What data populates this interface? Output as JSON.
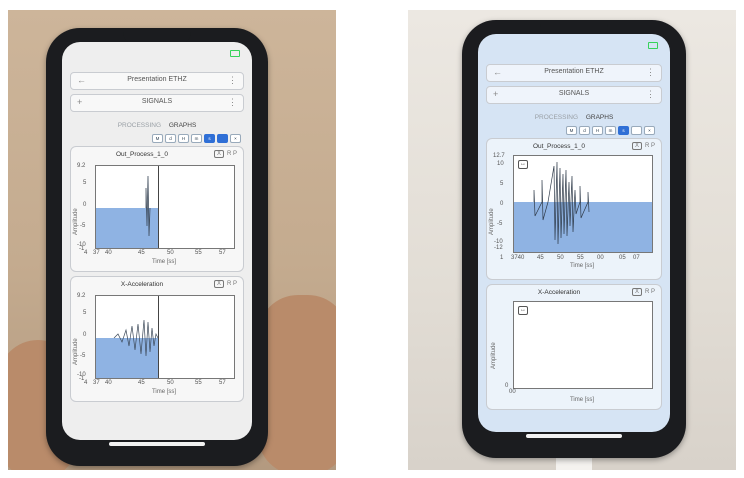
{
  "phones": [
    {
      "app_bar_title": "Presentation ETHZ",
      "signals_label": "SIGNALS",
      "tabs": {
        "processing": "PROCESSING",
        "graphs": "GRAPHS"
      },
      "range_buttons": [
        "M",
        "d",
        "H",
        "m",
        "s"
      ],
      "active_range": "s",
      "charts": [
        {
          "title": "Out_Process_1_0",
          "close": "X",
          "r": "R",
          "p": "P",
          "xlabel": "Time [ss]",
          "ylabel": "Amplitude",
          "yticks": [
            "9.2",
            "5",
            "0",
            "-5",
            "-10"
          ],
          "ymin_label": "-1",
          "xticks": [
            "4",
            "37",
            "40",
            "45",
            "50",
            "55",
            "57"
          ],
          "ylim": [
            -10,
            9.2
          ],
          "cursor_x": 48
        },
        {
          "title": "X-Acceleration",
          "close": "X",
          "r": "R",
          "p": "P",
          "xlabel": "Time [ss]",
          "ylabel": "Amplitude",
          "yticks": [
            "9.2",
            "5",
            "0",
            "-5",
            "-10"
          ],
          "ymin_label": "-1",
          "xticks": [
            "4",
            "37",
            "40",
            "45",
            "50",
            "55",
            "57"
          ],
          "ylim": [
            -10,
            9.2
          ],
          "cursor_x": 48
        }
      ]
    },
    {
      "app_bar_title": "Presentation ETHZ",
      "signals_label": "SIGNALS",
      "tabs": {
        "processing": "PROCESSING",
        "graphs": "GRAPHS"
      },
      "range_buttons": [
        "M",
        "d",
        "H",
        "m",
        "s"
      ],
      "active_range": "s",
      "charts": [
        {
          "title": "Out_Process_1_0",
          "close": "X",
          "r": "R",
          "p": "P",
          "xlabel": "Time [ss]",
          "ylabel": "Amplitude",
          "yticks": [
            "12.7",
            "10",
            "5",
            "0",
            "-5",
            "-10",
            "-12"
          ],
          "xticks": [
            "1",
            "3740",
            "45",
            "50",
            "55",
            "00",
            "05",
            "07"
          ],
          "ylim": [
            -12,
            12.7
          ]
        },
        {
          "title": "X-Acceleration",
          "close": "X",
          "r": "R",
          "p": "P",
          "xlabel": "Time [ss]",
          "ylabel": "Amplitude",
          "yticks": [
            "0"
          ],
          "xticks": [
            "00"
          ]
        }
      ]
    }
  ],
  "colors": {
    "signal_fill": "#8fb3e3",
    "accent": "#2f6fd6",
    "battery": "#37d35a"
  }
}
